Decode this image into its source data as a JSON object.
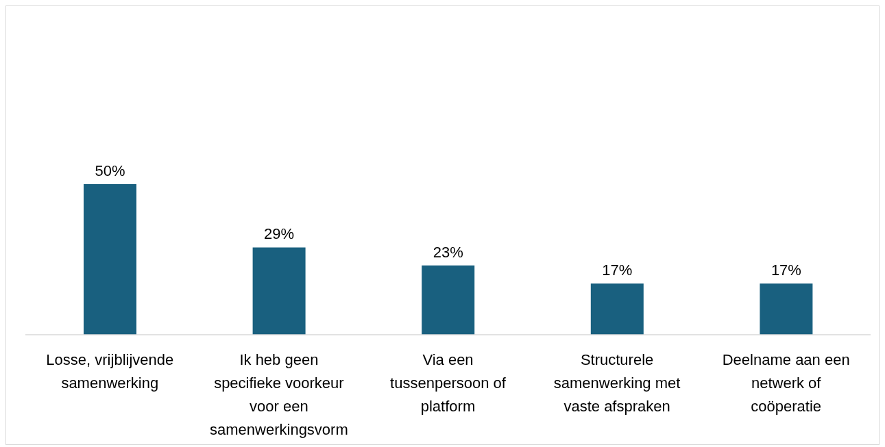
{
  "chart_data": {
    "type": "bar",
    "categories": [
      "Losse, vrijblijvende samenwerking",
      "Ik heb geen specifieke voorkeur voor een samenwerkingsvorm",
      "Via een tussenpersoon of platform",
      "Structurele samenwerking met vaste afspraken",
      "Deelname aan een netwerk of coöperatie"
    ],
    "values": [
      50,
      29,
      23,
      17,
      17
    ],
    "value_labels": [
      "50%",
      "29%",
      "23%",
      "17%",
      "17%"
    ],
    "color": "#19607f",
    "grid": false,
    "legend": false
  }
}
